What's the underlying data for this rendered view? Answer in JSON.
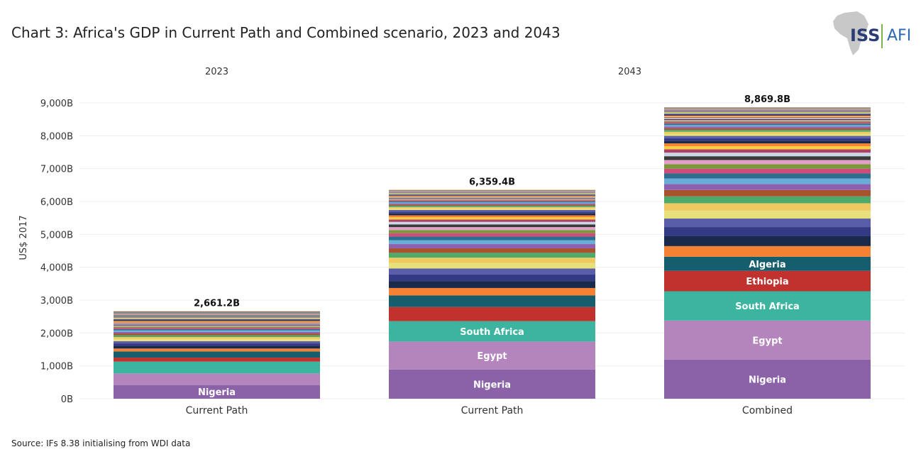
{
  "title": "Chart 3: Africa's GDP in Current Path and Combined scenario, 2023 and 2043",
  "source": "Source: IFs 8.38 initialising from WDI data",
  "logo": {
    "text": "ISS",
    "text2": "AFI"
  },
  "chart_data": {
    "type": "bar",
    "stacked": true,
    "ylabel": "US$ 2017",
    "ylim": [
      0,
      9000
    ],
    "yticks": [
      "0B",
      "1,000B",
      "2,000B",
      "3,000B",
      "4,000B",
      "5,000B",
      "6,000B",
      "7,000B",
      "8,000B",
      "9,000B"
    ],
    "grid": true,
    "group_labels": [
      "2023",
      "2043"
    ],
    "categories": [
      "Current Path",
      "Current Path",
      "Combined"
    ],
    "groups": [
      0,
      1,
      1
    ],
    "totals": [
      2661.2,
      6359.4,
      8869.8
    ],
    "total_labels": [
      "2,661.2B",
      "6,359.4B",
      "8,869.8B"
    ],
    "named_series": [
      {
        "name": "Nigeria",
        "color": "#8b62a8",
        "values": [
          410,
          890,
          1190
        ]
      },
      {
        "name": "Egypt",
        "color": "#b385bc",
        "values": [
          360,
          850,
          1190
        ]
      },
      {
        "name": "South Africa",
        "color": "#3bb5a0",
        "values": [
          360,
          620,
          890
        ]
      },
      {
        "name": "Ethiopia",
        "color": "#c1312d",
        "values": [
          120,
          430,
          620
        ]
      },
      {
        "name": "Algeria",
        "color": "#165e6e",
        "values": [
          190,
          350,
          430
        ]
      }
    ],
    "segment_labels": [
      {
        "bar": 0,
        "series": "Nigeria",
        "text": "Nigeria"
      },
      {
        "bar": 1,
        "series": "Nigeria",
        "text": "Nigeria"
      },
      {
        "bar": 1,
        "series": "Egypt",
        "text": "Egypt"
      },
      {
        "bar": 1,
        "series": "South Africa",
        "text": "South Africa"
      },
      {
        "bar": 2,
        "series": "Nigeria",
        "text": "Nigeria"
      },
      {
        "bar": 2,
        "series": "Egypt",
        "text": "Egypt"
      },
      {
        "bar": 2,
        "series": "South Africa",
        "text": "South Africa"
      },
      {
        "bar": 2,
        "series": "Ethiopia",
        "text": "Ethiopia"
      },
      {
        "bar": 2,
        "series": "Algeria",
        "text": "Algeria"
      }
    ],
    "other_colors": [
      "#f58232",
      "#1a2a4a",
      "#343a86",
      "#5a5ea8",
      "#e8e07a",
      "#f0c860",
      "#4daa6a",
      "#a8522e",
      "#9060b0",
      "#6aaed8",
      "#2b6e8f",
      "#d04c7a",
      "#7a9a3a",
      "#e3a0c8",
      "#3a3a3a",
      "#c8d8e8",
      "#b0406a",
      "#f4d040"
    ]
  }
}
